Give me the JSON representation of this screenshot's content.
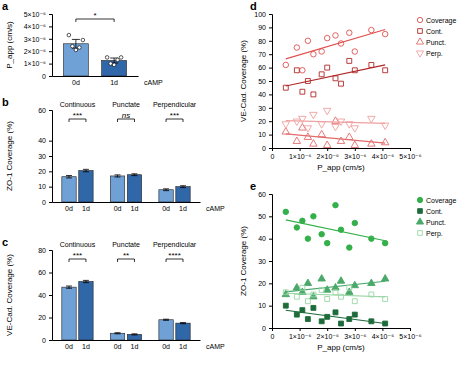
{
  "chart_data": [
    {
      "type": "bar",
      "title": "a",
      "categories": [
        "0d",
        "1d"
      ],
      "values": [
        2.6e-06,
        1.25e-06
      ],
      "errors": [
        3.5e-07,
        2e-07
      ],
      "points": [
        [
          3.3e-06,
          2.4e-06,
          2.1e-06,
          2.3e-06,
          2.9e-06
        ],
        [
          1.5e-06,
          1e-06,
          9e-07,
          1.3e-06,
          1.5e-06
        ]
      ],
      "colors": [
        "#6fa1d6",
        "#2f67a8"
      ],
      "x_label": "cAMP",
      "y_label": "P_app (cm/s)",
      "ylim": [
        0,
        5e-06
      ],
      "yticks": [
        0,
        {
          "value": 1e-06,
          "label": "1×10⁻⁶"
        },
        {
          "value": 2e-06,
          "label": "2×10⁻⁶"
        },
        {
          "value": 3e-06,
          "label": "3×10⁻⁶"
        },
        {
          "value": 4e-06,
          "label": "4×10⁻⁶"
        },
        {
          "value": 5e-06,
          "label": "5×10⁻⁶"
        }
      ],
      "annotations": [
        {
          "text": "*"
        }
      ]
    },
    {
      "type": "bar",
      "title": "b",
      "categories": [
        "Continuous",
        "Punctate",
        "Perpendicular"
      ],
      "series": [
        {
          "name": "0d",
          "color": "#6fa1d6",
          "values": [
            16.5,
            17,
            8
          ],
          "errors": [
            0.8,
            0.7,
            0.6
          ]
        },
        {
          "name": "1d",
          "color": "#2f67a8",
          "values": [
            20.5,
            17.8,
            10
          ],
          "errors": [
            0.8,
            0.6,
            0.6
          ]
        }
      ],
      "x_label": "cAMP",
      "y_label": "ZO-1 Coverage (%)",
      "ylim": [
        0,
        60
      ],
      "yticks": [
        0,
        10,
        20,
        30,
        40,
        60
      ],
      "annotations": [
        {
          "text": "***",
          "category": 0
        },
        {
          "text": "ns",
          "category": 1
        },
        {
          "text": "***",
          "category": 2
        }
      ]
    },
    {
      "type": "bar",
      "title": "c",
      "categories": [
        "Continuous",
        "Punctate",
        "Perpendicular"
      ],
      "series": [
        {
          "name": "0d",
          "color": "#6fa1d6",
          "values": [
            47,
            6,
            18
          ],
          "errors": [
            1,
            0.5,
            0.5
          ]
        },
        {
          "name": "1d",
          "color": "#2f67a8",
          "values": [
            52,
            5,
            15
          ],
          "errors": [
            1,
            0.5,
            0.5
          ]
        }
      ],
      "x_label": "cAMP",
      "y_label": "VE-Cad. Coverage (%)",
      "ylim": [
        0,
        80
      ],
      "yticks": [
        0,
        20,
        40,
        60,
        80
      ],
      "annotations": [
        {
          "text": "***",
          "category": 0
        },
        {
          "text": "**",
          "category": 1
        },
        {
          "text": "****",
          "category": 2
        }
      ]
    },
    {
      "type": "scatter",
      "title": "d",
      "x": [
        5e-07,
        9e-07,
        1.1e-06,
        1.3e-06,
        1.5e-06,
        1.8e-06,
        2e-06,
        2.3e-06,
        2.5e-06,
        2.8e-06,
        3e-06,
        3.6e-06,
        4.1e-06
      ],
      "series": [
        {
          "name": "Coverage",
          "color": "#e05050",
          "marker": "circle-open",
          "line_style": "solid",
          "values": [
            62,
            75,
            58,
            80,
            70,
            72,
            82,
            84,
            78,
            86,
            72,
            88,
            85
          ]
        },
        {
          "name": "Cont.",
          "color": "#b02828",
          "marker": "square-open",
          "line_style": "solid",
          "values": [
            45,
            58,
            42,
            50,
            40,
            55,
            60,
            52,
            48,
            65,
            58,
            62,
            58
          ]
        },
        {
          "name": "Punct.",
          "color": "#e36b6b",
          "marker": "triangle-open",
          "line_style": "solid",
          "values": [
            12,
            5,
            15,
            8,
            3,
            10,
            2,
            20,
            5,
            8,
            2,
            3,
            4
          ]
        },
        {
          "name": "Perp.",
          "color": "#f0a0a0",
          "marker": "triangle-down-open",
          "line_style": "solid",
          "values": [
            18,
            20,
            22,
            15,
            25,
            18,
            28,
            16,
            20,
            18,
            15,
            22,
            17
          ]
        }
      ],
      "x_label": "P_app (cm/s)",
      "y_label": "VE-Cad. Coverage (%)",
      "xlim": [
        0,
        5e-06
      ],
      "xticks": [
        0,
        {
          "value": 1e-06,
          "label": "1×10⁻⁶"
        },
        {
          "value": 2e-06,
          "label": "2×10⁻⁶"
        },
        {
          "value": 3e-06,
          "label": "3×10⁻⁶"
        },
        {
          "value": 4e-06,
          "label": "4×10⁻⁶"
        },
        {
          "value": 5e-06,
          "label": "5×10⁻⁶"
        }
      ],
      "ylim": [
        0,
        100
      ],
      "yticks": [
        0,
        10,
        20,
        30,
        40,
        50,
        60,
        70,
        80,
        90,
        100
      ],
      "legend": "right"
    },
    {
      "type": "scatter",
      "title": "e",
      "x": [
        5e-07,
        9e-07,
        1.1e-06,
        1.3e-06,
        1.5e-06,
        1.8e-06,
        2e-06,
        2.3e-06,
        2.5e-06,
        2.8e-06,
        3e-06,
        3.6e-06,
        4.1e-06
      ],
      "series": [
        {
          "name": "Coverage",
          "color": "#33b04a",
          "marker": "circle",
          "line_style": "solid",
          "values": [
            52,
            45,
            48,
            40,
            50,
            42,
            38,
            55,
            44,
            36,
            47,
            40,
            38
          ]
        },
        {
          "name": "Cont.",
          "color": "#1d6b3a",
          "marker": "square",
          "line_style": "solid",
          "values": [
            10,
            6,
            8,
            4,
            9,
            3,
            5,
            7,
            2,
            4,
            6,
            3,
            2
          ]
        },
        {
          "name": "Punct.",
          "color": "#4aa86a",
          "marker": "triangle",
          "line_style": "solid",
          "values": [
            15,
            18,
            16,
            20,
            14,
            22,
            17,
            18,
            21,
            16,
            19,
            20,
            22
          ]
        },
        {
          "name": "Perp.",
          "color": "#9bd7a6",
          "marker": "square-open",
          "line_style": "solid",
          "values": [
            16,
            14,
            18,
            12,
            15,
            17,
            13,
            16,
            14,
            18,
            12,
            15,
            13
          ]
        }
      ],
      "x_label": "P_app (cm/s)",
      "y_label": "ZO-1 Coverage (%)",
      "xlim": [
        0,
        5e-06
      ],
      "xticks": [
        0,
        {
          "value": 1e-06,
          "label": "1×10⁻⁶"
        },
        {
          "value": 2e-06,
          "label": "2×10⁻⁶"
        },
        {
          "value": 3e-06,
          "label": "3×10⁻⁶"
        },
        {
          "value": 4e-06,
          "label": "4×10⁻⁶"
        },
        {
          "value": 5e-06,
          "label": "5×10⁻⁶"
        }
      ],
      "ylim": [
        0,
        60
      ],
      "yticks": [
        0,
        10,
        20,
        30,
        40,
        50,
        60
      ],
      "legend": "right"
    }
  ]
}
